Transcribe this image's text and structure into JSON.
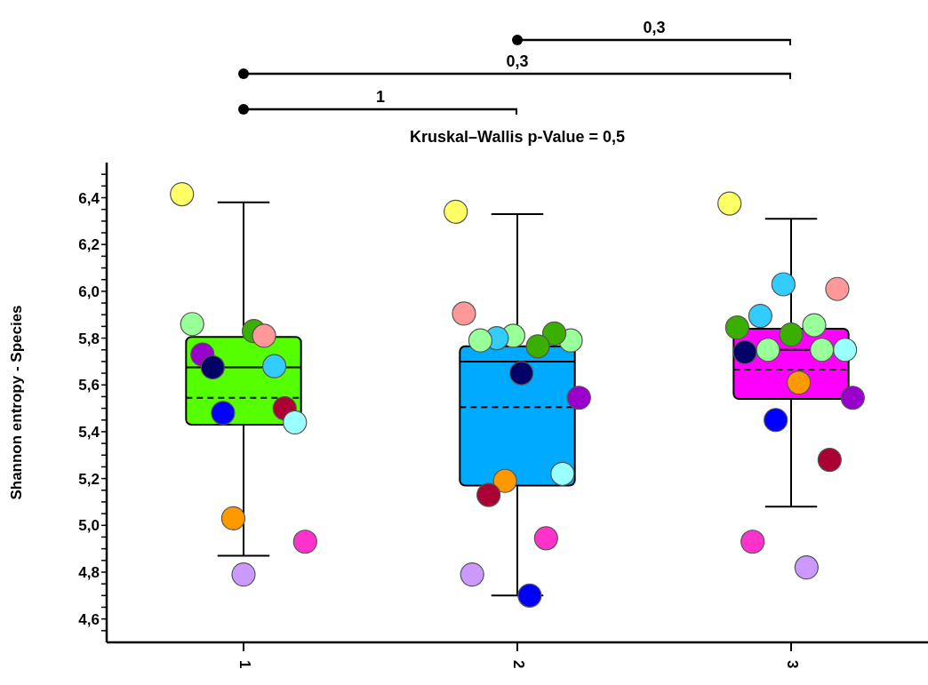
{
  "chart_data": {
    "type": "box",
    "title": "Kruskal–Wallis p-Value = 0,5",
    "ylabel": "Shannon entropy - Species",
    "categories": [
      "1",
      "2",
      "3"
    ],
    "colors": [
      "#55ff00",
      "#00aaff",
      "#ff00ff"
    ],
    "boxes": [
      {
        "low": 4.87,
        "q1": 5.43,
        "median": 5.675,
        "q3": 5.805,
        "high": 6.38,
        "mean": 5.545
      },
      {
        "low": 4.7,
        "q1": 5.17,
        "median": 5.7,
        "q3": 5.765,
        "high": 6.33,
        "mean": 5.505
      },
      {
        "low": 5.08,
        "q1": 5.54,
        "median": 5.75,
        "q3": 5.84,
        "high": 6.31,
        "mean": 5.665
      }
    ],
    "ylim": [
      4.5,
      6.55
    ],
    "yticks": [
      {
        "value": 4.55,
        "label": null
      },
      {
        "value": 4.6,
        "label": "4,6"
      },
      {
        "value": 4.65,
        "label": null
      },
      {
        "value": 4.7,
        "label": null
      },
      {
        "value": 4.75,
        "label": null
      },
      {
        "value": 4.8,
        "label": "4,8"
      },
      {
        "value": 4.85,
        "label": null
      },
      {
        "value": 4.9,
        "label": null
      },
      {
        "value": 4.95,
        "label": null
      },
      {
        "value": 5.0,
        "label": "5,0"
      },
      {
        "value": 5.05,
        "label": null
      },
      {
        "value": 5.1,
        "label": null
      },
      {
        "value": 5.15,
        "label": null
      },
      {
        "value": 5.2,
        "label": "5,2"
      },
      {
        "value": 5.25,
        "label": null
      },
      {
        "value": 5.3,
        "label": null
      },
      {
        "value": 5.35,
        "label": null
      },
      {
        "value": 5.4,
        "label": "5,4"
      },
      {
        "value": 5.45,
        "label": null
      },
      {
        "value": 5.5,
        "label": null
      },
      {
        "value": 5.55,
        "label": null
      },
      {
        "value": 5.6,
        "label": "5,6"
      },
      {
        "value": 5.65,
        "label": null
      },
      {
        "value": 5.7,
        "label": null
      },
      {
        "value": 5.75,
        "label": null
      },
      {
        "value": 5.8,
        "label": "5,8"
      },
      {
        "value": 5.85,
        "label": null
      },
      {
        "value": 5.9,
        "label": null
      },
      {
        "value": 5.95,
        "label": null
      },
      {
        "value": 6.0,
        "label": "6,0"
      },
      {
        "value": 6.05,
        "label": null
      },
      {
        "value": 6.1,
        "label": null
      },
      {
        "value": 6.15,
        "label": null
      },
      {
        "value": 6.2,
        "label": "6,2"
      },
      {
        "value": 6.25,
        "label": null
      },
      {
        "value": 6.3,
        "label": null
      },
      {
        "value": 6.35,
        "label": null
      },
      {
        "value": 6.4,
        "label": "6,4"
      },
      {
        "value": 6.45,
        "label": null
      },
      {
        "value": 6.5,
        "label": null
      }
    ],
    "annotations": [
      "1",
      "0,3",
      "0,3"
    ],
    "series": [
      {
        "type": "scatter",
        "x": [
          "1",
          "1",
          "1",
          "1",
          "1",
          "1",
          "1",
          "1",
          "1",
          "1",
          "1",
          "1",
          "1"
        ],
        "values": [
          6.415,
          5.83,
          5.86,
          5.81,
          5.73,
          5.68,
          5.675,
          5.5,
          5.48,
          5.44,
          5.03,
          4.93,
          4.79
        ],
        "colors": [
          "#ffff66",
          "#3aaf00",
          "#99ff99",
          "#ff9999",
          "#9900cc",
          "#33ccff",
          "#000066",
          "#aa0033",
          "#0000ff",
          "#99ffff",
          "#ff9900",
          "#ff33cc",
          "#cc99ff"
        ]
      },
      {
        "type": "scatter",
        "x": [
          "2",
          "2",
          "2",
          "2",
          "2",
          "2",
          "2",
          "2",
          "2",
          "2",
          "2",
          "2",
          "2",
          "2",
          "2",
          "2"
        ],
        "values": [
          6.34,
          5.81,
          5.79,
          5.8,
          5.82,
          5.79,
          5.765,
          5.905,
          5.65,
          5.545,
          5.19,
          5.22,
          5.13,
          4.945,
          4.79,
          4.7
        ],
        "colors": [
          "#ffff66",
          "#99ff99",
          "#99ff99",
          "#33ccff",
          "#3aaf00",
          "#99ff99",
          "#3aaf00",
          "#ff9999",
          "#000066",
          "#9900cc",
          "#ff9900",
          "#99ffff",
          "#aa0033",
          "#ff33cc",
          "#cc99ff",
          "#0000ff"
        ]
      },
      {
        "type": "scatter",
        "x": [
          "3",
          "3",
          "3",
          "3",
          "3",
          "3",
          "3",
          "3",
          "3",
          "3",
          "3",
          "3",
          "3",
          "3",
          "3",
          "3",
          "3"
        ],
        "values": [
          6.375,
          6.03,
          6.01,
          5.895,
          5.855,
          5.845,
          5.815,
          5.75,
          5.75,
          5.75,
          5.74,
          5.61,
          5.545,
          5.45,
          5.28,
          4.93,
          4.82
        ],
        "colors": [
          "#ffff66",
          "#33ccff",
          "#ff9999",
          "#33ccff",
          "#99ff99",
          "#3aaf00",
          "#3aaf00",
          "#99ffff",
          "#99ff99",
          "#99ff99",
          "#000066",
          "#ff9900",
          "#9900cc",
          "#0000ff",
          "#aa0033",
          "#ff33cc",
          "#cc99ff"
        ]
      }
    ]
  }
}
